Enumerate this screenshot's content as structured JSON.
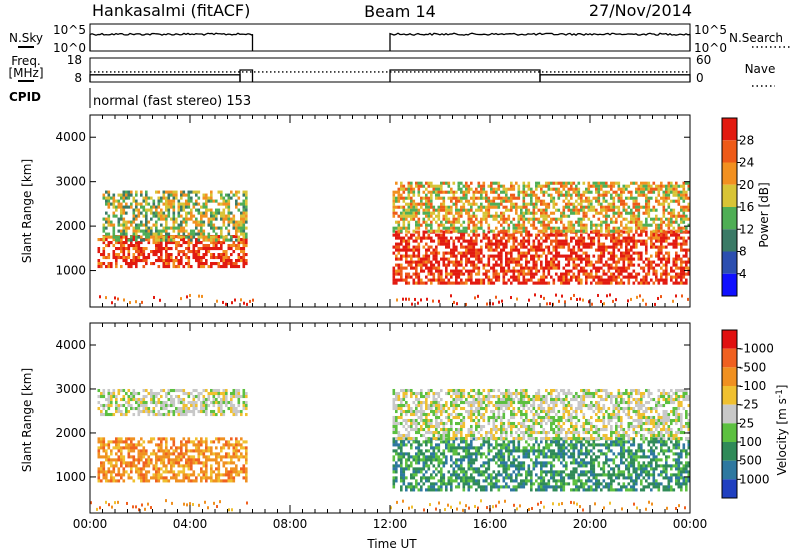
{
  "header": {
    "station": "Hankasalmi (fitACF)",
    "beam": "Beam 14",
    "date": "27/Nov/2014"
  },
  "nsky_panel": {
    "left_label": "N.Sky",
    "right_label": "N.Search",
    "left_ticks": [
      "10^5",
      "10^0"
    ],
    "right_ticks": [
      "10^5",
      "10^0"
    ],
    "nsky_level_log10": 4.2,
    "coverage_ut": [
      [
        0,
        6.5
      ],
      [
        12,
        24
      ]
    ]
  },
  "freq_panel": {
    "left_label_1": "Freq.",
    "left_label_2": "[MHz]",
    "right_label": "Nave",
    "left_ticks": [
      "18",
      "8"
    ],
    "right_ticks": [
      "60",
      "0"
    ],
    "freq_mhz": 12.2,
    "nave_segments": [
      {
        "t0": 0,
        "t1": 6.0,
        "nave": 18
      },
      {
        "t0": 6.0,
        "t1": 6.5,
        "nave": 30
      },
      {
        "t0": 12.0,
        "t1": 18.0,
        "nave": 30
      },
      {
        "t0": 18.0,
        "t1": 24.0,
        "nave": 18
      }
    ]
  },
  "cpid_panel": {
    "label": "CPID",
    "program": "normal (fast stereo) 153"
  },
  "chart_data": [
    {
      "type": "heatmap",
      "quantity": "Power",
      "ylabel": "Slant Range [km]",
      "xlabel": "Time UT",
      "ylim": [
        180,
        4500
      ],
      "xlim_hours": [
        0,
        24
      ],
      "y_ticks": [
        "1000",
        "2000",
        "3000",
        "4000"
      ],
      "x_ticks": [
        "00:00",
        "04:00",
        "08:00",
        "12:00",
        "16:00",
        "20:00",
        "00:00"
      ],
      "colorbar": {
        "label": "Power [dB]",
        "ticks": [
          "4",
          "8",
          "12",
          "16",
          "20",
          "24",
          "28"
        ],
        "colors": [
          "#1010ff",
          "#2c4fb0",
          "#3a7a66",
          "#4fae55",
          "#d8c436",
          "#f29020",
          "#ee5a18",
          "#e21a10"
        ]
      },
      "data_gaps_ut": [
        [
          6.5,
          12.0
        ]
      ],
      "echo_bands": [
        {
          "t0": 0.3,
          "t1": 6.3,
          "r0": 1100,
          "r1": 1800,
          "power_db": 27
        },
        {
          "t0": 0.5,
          "t1": 6.2,
          "r0": 1700,
          "r1": 2800,
          "power_db": 14
        },
        {
          "t0": 12.1,
          "t1": 24,
          "r0": 700,
          "r1": 1900,
          "power_db": 28
        },
        {
          "t0": 12.1,
          "t1": 24,
          "r0": 1900,
          "r1": 3000,
          "power_db": 18
        }
      ]
    },
    {
      "type": "heatmap",
      "quantity": "Velocity",
      "ylabel": "Slant Range [km]",
      "xlabel": "Time UT",
      "ylim": [
        180,
        4500
      ],
      "xlim_hours": [
        0,
        24
      ],
      "y_ticks": [
        "1000",
        "2000",
        "3000",
        "4000"
      ],
      "x_ticks": [
        "00:00",
        "04:00",
        "08:00",
        "12:00",
        "16:00",
        "20:00",
        "00:00"
      ],
      "colorbar": {
        "label": "Velocity [m s^-1]",
        "ticks": [
          "1000",
          "500",
          "100",
          "25",
          "-25",
          "-100",
          "-500",
          "-1000"
        ],
        "colors": [
          "#2040c0",
          "#2e78a0",
          "#2f8a58",
          "#5cc040",
          "#c8c8c8",
          "#f0c030",
          "#f09020",
          "#f06020",
          "#e01010"
        ]
      },
      "data_gaps_ut": [
        [
          6.5,
          12.0
        ]
      ],
      "echo_bands": [
        {
          "t0": 0.3,
          "t1": 6.3,
          "r0": 900,
          "r1": 1900,
          "velocity_ms": -300
        },
        {
          "t0": 0.3,
          "t1": 6.3,
          "r0": 2400,
          "r1": 3000,
          "velocity_ms": 0
        },
        {
          "t0": 12.1,
          "t1": 24,
          "r0": 700,
          "r1": 1900,
          "velocity_ms": 100
        },
        {
          "t0": 12.1,
          "t1": 24,
          "r0": 1900,
          "r1": 3000,
          "velocity_ms": 0
        }
      ]
    }
  ]
}
